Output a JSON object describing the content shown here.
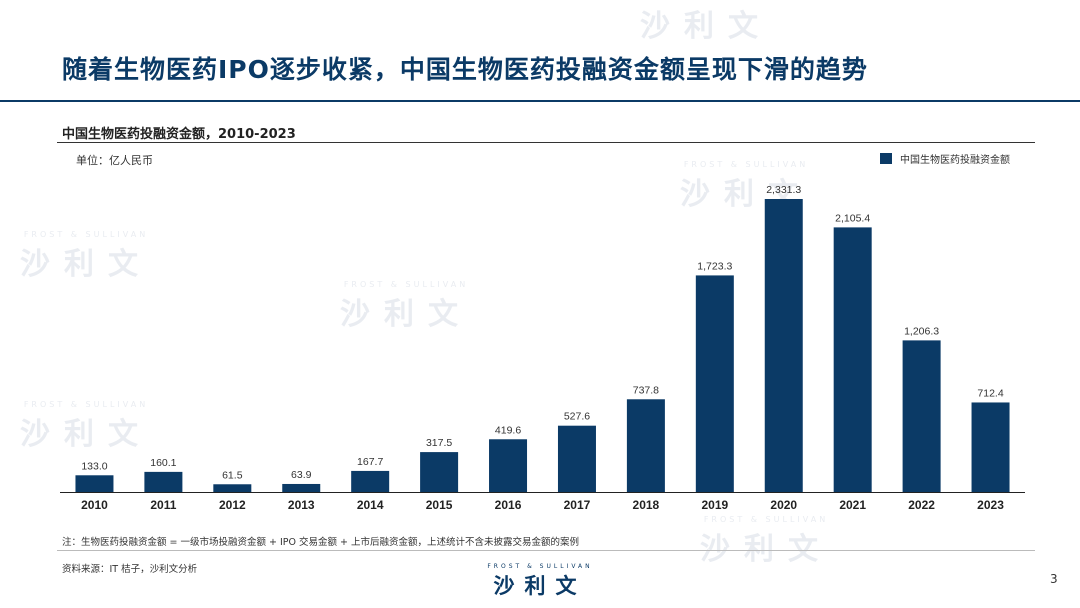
{
  "slide": {
    "title": "随着生物医药IPO逐步收紧，中国生物医药投融资金额呈现下滑的趋势",
    "page_number": "3",
    "note": "注：生物医药投融资金额 = 一级市场投融资金额 + IPO 交易金额 + 上市后融资金额，上述统计不含未披露交易金额的案例",
    "source": "资料来源：IT 桔子，沙利文分析",
    "watermark": {
      "top": "FROST & SULLIVAN",
      "main": "沙利文"
    },
    "footer_logo": {
      "top": "FROST & SULLIVAN",
      "main": "沙利文"
    },
    "colors": {
      "accent": "#0b3a66",
      "bar": "#0b3a66"
    }
  },
  "chart_data": {
    "type": "bar",
    "title": "中国生物医药投融资金额，2010-2023",
    "unit_label": "单位：亿人民币",
    "legend": "中国生物医药投融资金额",
    "legend_position": "top-right",
    "categories": [
      "2010",
      "2011",
      "2012",
      "2013",
      "2014",
      "2015",
      "2016",
      "2017",
      "2018",
      "2019",
      "2020",
      "2021",
      "2022",
      "2023"
    ],
    "series": [
      {
        "name": "中国生物医药投融资金额",
        "values": [
          133.0,
          160.1,
          61.5,
          63.9,
          167.7,
          317.5,
          419.6,
          527.6,
          737.8,
          1723.3,
          2331.3,
          2105.4,
          1206.3,
          712.4
        ],
        "labels": [
          "133.0",
          "160.1",
          "61.5",
          "63.9",
          "167.7",
          "317.5",
          "419.6",
          "527.6",
          "737.8",
          "1,723.3",
          "2,331.3",
          "2,105.4",
          "1,206.3",
          "712.4"
        ]
      }
    ],
    "ylim": [
      0,
      2331.3
    ],
    "grid": false,
    "xlabel": "",
    "ylabel": ""
  }
}
